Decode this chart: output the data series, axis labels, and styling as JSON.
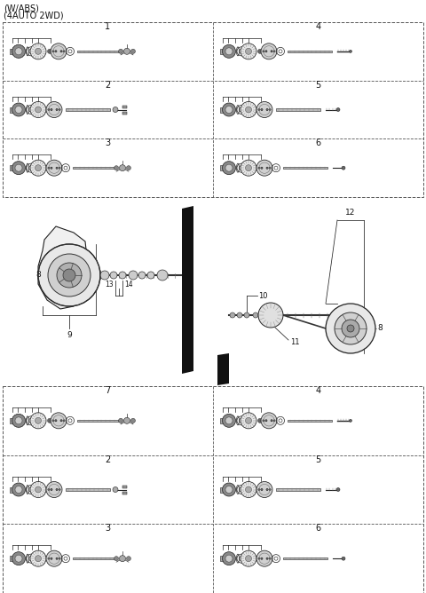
{
  "title_line1": "(W/ABS)",
  "title_line2": "(4AUTO 2WD)",
  "bg_color": "#ffffff",
  "top_left_labels": [
    "1",
    "2",
    "3"
  ],
  "top_right_labels": [
    "4",
    "5",
    "6"
  ],
  "bottom_left_labels": [
    "7",
    "2",
    "3"
  ],
  "bottom_right_labels": [
    "4",
    "5",
    "6"
  ]
}
